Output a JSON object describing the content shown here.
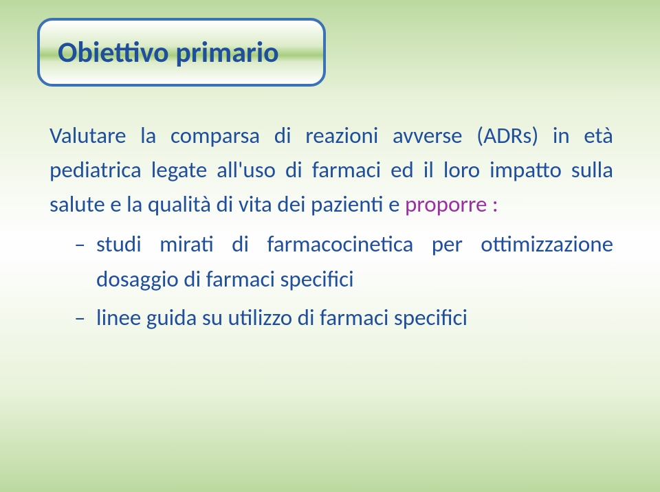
{
  "colors": {
    "text_primary": "#1f4e9c",
    "text_highlight": "#9b2fa3",
    "card_border": "#3c71b6",
    "bg_gradient_top": "#bcd9a0",
    "bg_gradient_mid": "#fefefe",
    "card_grad_mid": "#a7cd7d"
  },
  "title": "Obiettivo primario",
  "lead_plain": "Valutare la comparsa di reazioni avverse (ADRs) in età pediatrica legate all'uso di farmaci ed il loro impatto sulla salute e la qualità di vita dei pazienti e ",
  "lead_highlight": "proporre :",
  "sub_items": [
    "studi mirati di farmacocinetica per ottimizzazione dosaggio di farmaci specifici",
    "linee guida su utilizzo di farmaci specifici"
  ]
}
